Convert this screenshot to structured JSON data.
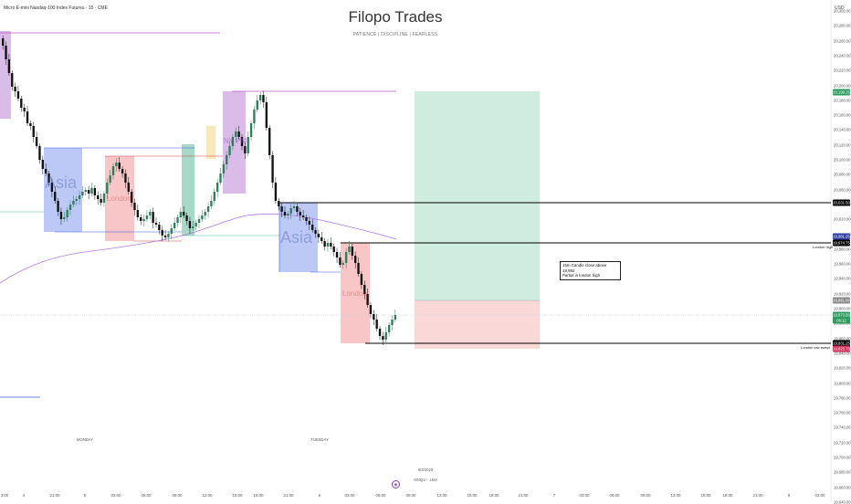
{
  "header": {
    "symbol": "Micro E-mini Nasdaq-100 Index Futures · 15 · CME",
    "title": "Filopo Trades",
    "subtitle": "PATIENCE | DISCIPLINE | FEARLESS",
    "currency": "USD"
  },
  "colors": {
    "asia": "#7a94f0",
    "london": "#f08080",
    "ny": "#c090d8",
    "ny_am": "#f5d98a",
    "green_session": "#5fb89a",
    "target_zone": "#a8dcc8",
    "stop_zone": "#f5b8b8",
    "up_candle": "#2e7d5b",
    "down_candle": "#111111",
    "ema": "#b27ae0"
  },
  "y_axis": {
    "ticks": [
      "20,300.00",
      "20,280.00",
      "20,260.00",
      "20,240.00",
      "20,220.00",
      "20,200.00",
      "20,180.00",
      "20,160.00",
      "20,140.00",
      "20,120.00",
      "20,100.00",
      "20,080.00",
      "20,060.00",
      "20,040.00",
      "20,020.00",
      "20,000.00",
      "19,980.00",
      "19,960.00",
      "19,940.00",
      "19,920.00",
      "19,900.00",
      "19,880.00",
      "19,860.00",
      "19,840.00",
      "19,820.00",
      "19,800.00",
      "19,780.00",
      "19,760.00",
      "19,740.00",
      "19,720.00",
      "19,700.00",
      "19,680.00",
      "19,660.00",
      "19,640.00"
    ],
    "price_labels": [
      {
        "text": "20,199.25",
        "color": "#2e9b5f"
      },
      {
        "text": "20,031.50",
        "color": "#000000"
      },
      {
        "text": "19,981.25",
        "color": "#3040a0"
      },
      {
        "text": "19,974.75",
        "color": "#000000"
      },
      {
        "text": "19,891.00",
        "color": "#888888"
      },
      {
        "text": "19,873.50",
        "color": "#2e9b5f"
      },
      {
        "text": "06:12",
        "color": "#2e9b5f"
      },
      {
        "text": "19,831.25",
        "color": "#000000"
      },
      {
        "text": "19,825.75",
        "color": "#d0305a"
      }
    ]
  },
  "x_axis": {
    "ticks": [
      "3:00",
      "4",
      "21:00",
      "5",
      "03:00",
      "06:00",
      "09:00",
      "12:00",
      "15:00",
      "18:00",
      "21:00",
      "6",
      "03:00",
      "06:00",
      "09:00",
      "12:00",
      "15:00",
      "18:00",
      "21:00",
      "7",
      "03:00",
      "06:00",
      "09:00",
      "12:00",
      "15:00",
      "18:00",
      "21:00",
      "8",
      "03:00"
    ],
    "day_labels": [
      "MONDAY",
      "TUESDAY"
    ]
  },
  "zones": {
    "asia_label": "Asia",
    "london_label": "London",
    "ny_label": "NY PM"
  },
  "annotations": {
    "london_high": "London high",
    "london_low_swept": "London low swept",
    "note_line1": "15m Candle close above 19,892",
    "note_line2": "Partial in london high"
  },
  "footer": {
    "date": "6/3/2025",
    "symbol": "MNQ1! · 15M"
  }
}
